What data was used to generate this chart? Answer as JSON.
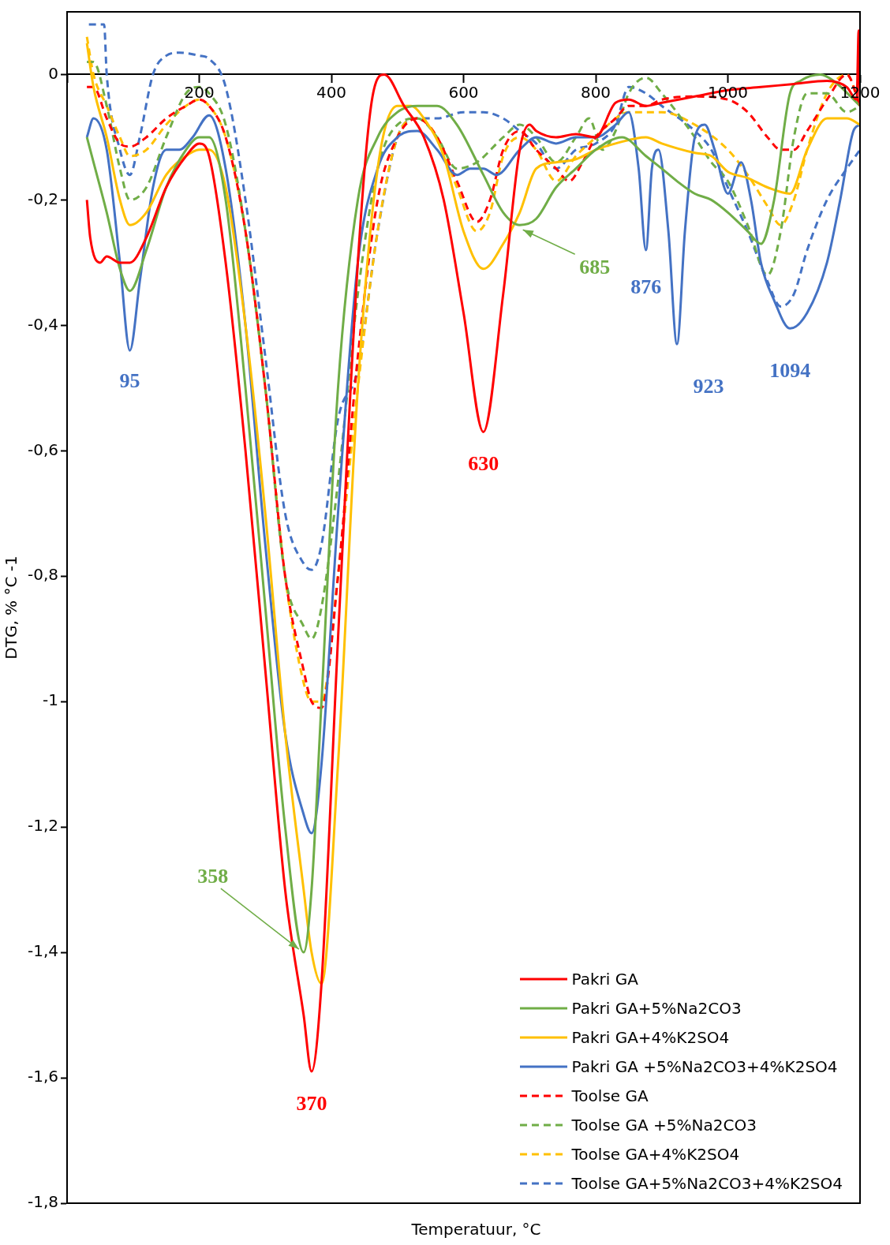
{
  "chart_data": {
    "type": "line",
    "xlabel": "Temperatuur, °C",
    "ylabel": "DTG, % °C -1",
    "xlim": [
      0,
      1200
    ],
    "xticks": [
      {
        "value": 0,
        "label": null
      },
      200,
      400,
      600,
      800,
      1000,
      1200
    ],
    "ylim": [
      -1.8,
      0.1
    ],
    "yticks": [
      {
        "value": 0,
        "label": "0"
      },
      {
        "value": -0.2,
        "label": "-0,2"
      },
      {
        "value": -0.4,
        "label": "-0,4"
      },
      {
        "value": -0.6,
        "label": "-0,6"
      },
      {
        "value": -0.8,
        "label": "-0,8"
      },
      {
        "value": -1,
        "label": "-1"
      },
      {
        "value": -1.2,
        "label": "-1,2"
      },
      {
        "value": -1.4,
        "label": "-1,4"
      },
      {
        "value": -1.6,
        "label": "-1,6"
      },
      {
        "value": -1.8,
        "label": "-1,8"
      }
    ],
    "grid": false,
    "legend": "bottom right",
    "marker": "none",
    "series": [
      {
        "name": "Pakri GA",
        "color": "#ff0000",
        "line_style": "solid",
        "x": [
          30,
          35,
          50,
          60,
          80,
          95,
          120,
          150,
          180,
          200,
          215,
          240,
          270,
          300,
          330,
          358,
          370,
          385,
          410,
          440,
          460,
          480,
          510,
          540,
          570,
          600,
          630,
          660,
          685,
          700,
          710,
          740,
          770,
          800,
          830,
          850,
          876,
          900,
          950,
          1000,
          1050,
          1100,
          1150,
          1180,
          1195,
          1198,
          1200
        ],
        "values": [
          -0.2,
          -0.26,
          -0.3,
          -0.29,
          -0.3,
          -0.3,
          -0.26,
          -0.18,
          -0.13,
          -0.11,
          -0.13,
          -0.3,
          -0.6,
          -0.95,
          -1.3,
          -1.5,
          -1.59,
          -1.45,
          -0.9,
          -0.3,
          -0.05,
          0.0,
          -0.05,
          -0.1,
          -0.2,
          -0.38,
          -0.57,
          -0.35,
          -0.12,
          -0.08,
          -0.09,
          -0.1,
          -0.095,
          -0.1,
          -0.045,
          -0.04,
          -0.05,
          -0.045,
          -0.035,
          -0.025,
          -0.02,
          -0.015,
          -0.01,
          -0.02,
          -0.04,
          0.07,
          -0.05
        ]
      },
      {
        "name": "Pakri GA+5%Na2CO3",
        "color": "#70ad47",
        "line_style": "solid",
        "x": [
          30,
          40,
          60,
          80,
          95,
          120,
          150,
          180,
          200,
          215,
          240,
          270,
          300,
          330,
          358,
          370,
          385,
          410,
          440,
          470,
          500,
          530,
          560,
          590,
          630,
          660,
          685,
          710,
          740,
          770,
          800,
          840,
          876,
          900,
          923,
          950,
          975,
          1000,
          1030,
          1050,
          1070,
          1094,
          1110,
          1140,
          1160,
          1200
        ],
        "values": [
          -0.1,
          -0.14,
          -0.22,
          -0.31,
          -0.345,
          -0.28,
          -0.18,
          -0.12,
          -0.1,
          -0.1,
          -0.2,
          -0.5,
          -0.85,
          -1.2,
          -1.4,
          -1.3,
          -1.0,
          -0.5,
          -0.2,
          -0.1,
          -0.06,
          -0.05,
          -0.05,
          -0.08,
          -0.16,
          -0.22,
          -0.24,
          -0.23,
          -0.18,
          -0.15,
          -0.12,
          -0.1,
          -0.13,
          -0.15,
          -0.17,
          -0.19,
          -0.2,
          -0.22,
          -0.25,
          -0.27,
          -0.2,
          -0.03,
          -0.01,
          0.0,
          -0.01,
          -0.05
        ]
      },
      {
        "name": "Pakri GA+4%K2SO4",
        "color": "#ffc000",
        "line_style": "solid",
        "x": [
          30,
          40,
          60,
          80,
          95,
          120,
          150,
          180,
          200,
          215,
          240,
          270,
          300,
          330,
          358,
          370,
          385,
          410,
          440,
          470,
          500,
          520,
          540,
          570,
          600,
          630,
          660,
          685,
          710,
          740,
          770,
          800,
          830,
          876,
          900,
          950,
          975,
          1000,
          1030,
          1060,
          1094,
          1120,
          1150,
          1180,
          1200
        ],
        "values": [
          0.05,
          -0.02,
          -0.1,
          -0.2,
          -0.24,
          -0.22,
          -0.16,
          -0.13,
          -0.12,
          -0.12,
          -0.18,
          -0.4,
          -0.7,
          -1.05,
          -1.3,
          -1.4,
          -1.45,
          -1.1,
          -0.5,
          -0.15,
          -0.05,
          -0.05,
          -0.07,
          -0.13,
          -0.25,
          -0.31,
          -0.27,
          -0.22,
          -0.15,
          -0.14,
          -0.135,
          -0.12,
          -0.11,
          -0.1,
          -0.11,
          -0.125,
          -0.13,
          -0.155,
          -0.165,
          -0.18,
          -0.19,
          -0.12,
          -0.07,
          -0.07,
          -0.08
        ]
      },
      {
        "name": "Pakri GA +5%Na2CO3+4%K2SO4",
        "color": "#4472c4",
        "line_style": "solid",
        "x": [
          30,
          40,
          60,
          80,
          95,
          110,
          130,
          150,
          170,
          190,
          215,
          240,
          270,
          300,
          330,
          358,
          370,
          385,
          410,
          440,
          470,
          500,
          530,
          560,
          590,
          610,
          630,
          650,
          685,
          710,
          740,
          770,
          800,
          830,
          850,
          865,
          876,
          885,
          895,
          910,
          923,
          935,
          950,
          965,
          980,
          1000,
          1020,
          1035,
          1050,
          1070,
          1094,
          1120,
          1150,
          1170,
          1190,
          1200
        ],
        "values": [
          -0.1,
          -0.07,
          -0.12,
          -0.3,
          -0.44,
          -0.33,
          -0.18,
          -0.12,
          -0.12,
          -0.1,
          -0.065,
          -0.15,
          -0.4,
          -0.75,
          -1.05,
          -1.18,
          -1.21,
          -1.1,
          -0.7,
          -0.3,
          -0.15,
          -0.1,
          -0.09,
          -0.12,
          -0.16,
          -0.15,
          -0.15,
          -0.16,
          -0.12,
          -0.1,
          -0.11,
          -0.1,
          -0.1,
          -0.08,
          -0.06,
          -0.15,
          -0.28,
          -0.15,
          -0.12,
          -0.25,
          -0.43,
          -0.25,
          -0.1,
          -0.08,
          -0.12,
          -0.19,
          -0.14,
          -0.2,
          -0.3,
          -0.36,
          -0.405,
          -0.38,
          -0.3,
          -0.2,
          -0.09,
          -0.08
        ]
      },
      {
        "name": "Toolse GA",
        "color": "#ff0000",
        "line_style": "dashed",
        "x": [
          30,
          40,
          60,
          80,
          95,
          120,
          150,
          180,
          200,
          215,
          240,
          270,
          300,
          330,
          358,
          370,
          385,
          410,
          440,
          470,
          500,
          530,
          560,
          590,
          620,
          640,
          660,
          685,
          710,
          740,
          760,
          780,
          800,
          830,
          850,
          876,
          900,
          950,
          1000,
          1030,
          1060,
          1080,
          1100,
          1120,
          1150,
          1180,
          1200
        ],
        "values": [
          -0.02,
          -0.02,
          -0.07,
          -0.11,
          -0.115,
          -0.1,
          -0.07,
          -0.05,
          -0.04,
          -0.05,
          -0.1,
          -0.25,
          -0.5,
          -0.8,
          -0.95,
          -1.0,
          -1.01,
          -0.8,
          -0.45,
          -0.2,
          -0.1,
          -0.07,
          -0.1,
          -0.17,
          -0.235,
          -0.2,
          -0.12,
          -0.09,
          -0.12,
          -0.15,
          -0.17,
          -0.14,
          -0.1,
          -0.07,
          -0.05,
          -0.05,
          -0.04,
          -0.035,
          -0.04,
          -0.06,
          -0.1,
          -0.12,
          -0.12,
          -0.09,
          -0.04,
          0.0,
          -0.05
        ]
      },
      {
        "name": "Toolse GA +5%Na2CO3",
        "color": "#70ad47",
        "line_style": "dashed",
        "x": [
          30,
          40,
          60,
          80,
          95,
          120,
          150,
          180,
          200,
          215,
          240,
          270,
          300,
          330,
          358,
          370,
          385,
          410,
          440,
          470,
          500,
          530,
          560,
          590,
          620,
          660,
          685,
          710,
          740,
          770,
          790,
          810,
          830,
          850,
          876,
          900,
          950,
          975,
          1000,
          1030,
          1060,
          1080,
          1100,
          1120,
          1150,
          1180,
          1200
        ],
        "values": [
          0.02,
          0.02,
          -0.05,
          -0.15,
          -0.2,
          -0.18,
          -0.1,
          -0.03,
          -0.02,
          -0.03,
          -0.08,
          -0.25,
          -0.5,
          -0.8,
          -0.88,
          -0.9,
          -0.85,
          -0.65,
          -0.35,
          -0.15,
          -0.08,
          -0.07,
          -0.1,
          -0.15,
          -0.14,
          -0.1,
          -0.08,
          -0.1,
          -0.14,
          -0.1,
          -0.07,
          -0.12,
          -0.09,
          -0.03,
          -0.005,
          -0.03,
          -0.1,
          -0.14,
          -0.17,
          -0.24,
          -0.32,
          -0.25,
          -0.1,
          -0.03,
          -0.03,
          -0.06,
          -0.05
        ]
      },
      {
        "name": "Toolse GA+4%K2SO4",
        "color": "#ffc000",
        "line_style": "dashed",
        "x": [
          30,
          40,
          60,
          80,
          95,
          120,
          150,
          180,
          200,
          215,
          240,
          270,
          300,
          330,
          358,
          370,
          385,
          410,
          440,
          470,
          500,
          530,
          560,
          590,
          620,
          640,
          660,
          685,
          710,
          740,
          770,
          800,
          830,
          850,
          876,
          900,
          950,
          1000,
          1030,
          1060,
          1080,
          1100,
          1120,
          1150,
          1180,
          1200
        ],
        "values": [
          0.06,
          0.0,
          -0.05,
          -0.1,
          -0.13,
          -0.12,
          -0.08,
          -0.05,
          -0.04,
          -0.05,
          -0.1,
          -0.25,
          -0.5,
          -0.8,
          -0.97,
          -1.0,
          -1.0,
          -0.8,
          -0.5,
          -0.25,
          -0.1,
          -0.07,
          -0.1,
          -0.18,
          -0.25,
          -0.22,
          -0.13,
          -0.1,
          -0.12,
          -0.17,
          -0.13,
          -0.1,
          -0.07,
          -0.06,
          -0.06,
          -0.06,
          -0.08,
          -0.12,
          -0.16,
          -0.21,
          -0.24,
          -0.2,
          -0.12,
          -0.03,
          0.0,
          -0.05
        ]
      },
      {
        "name": "Toolse GA+5%Na2CO3+4%K2SO4",
        "color": "#4472c4",
        "line_style": "dashed",
        "x": [
          33,
          56,
          60,
          80,
          95,
          110,
          130,
          150,
          170,
          200,
          215,
          240,
          270,
          300,
          330,
          358,
          370,
          385,
          410,
          440,
          470,
          500,
          530,
          560,
          600,
          630,
          660,
          685,
          710,
          740,
          770,
          800,
          830,
          850,
          876,
          900,
          950,
          975,
          1000,
          1030,
          1060,
          1080,
          1100,
          1120,
          1150,
          1180,
          1200
        ],
        "values": [
          0.08,
          0.08,
          0.0,
          -0.12,
          -0.16,
          -0.1,
          0.0,
          0.03,
          0.035,
          0.03,
          0.025,
          -0.02,
          -0.2,
          -0.45,
          -0.7,
          -0.78,
          -0.79,
          -0.75,
          -0.55,
          -0.47,
          -0.25,
          -0.1,
          -0.07,
          -0.07,
          -0.06,
          -0.06,
          -0.07,
          -0.09,
          -0.11,
          -0.15,
          -0.12,
          -0.11,
          -0.08,
          -0.02,
          -0.03,
          -0.05,
          -0.09,
          -0.12,
          -0.18,
          -0.25,
          -0.33,
          -0.37,
          -0.35,
          -0.28,
          -0.2,
          -0.15,
          -0.12
        ]
      }
    ],
    "annotations": [
      {
        "text": "95",
        "x": 95,
        "y": -0.44
      },
      {
        "text": "370",
        "x": 370,
        "y": -1.59
      },
      {
        "text": "358",
        "x": 358,
        "y": -1.4
      },
      {
        "text": "630",
        "x": 630,
        "y": -0.57
      },
      {
        "text": "685",
        "x": 685,
        "y": -0.24
      },
      {
        "text": "876",
        "x": 876,
        "y": -0.28
      },
      {
        "text": "923",
        "x": 923,
        "y": -0.43
      },
      {
        "text": "1094",
        "x": 1094,
        "y": -0.405
      }
    ]
  }
}
